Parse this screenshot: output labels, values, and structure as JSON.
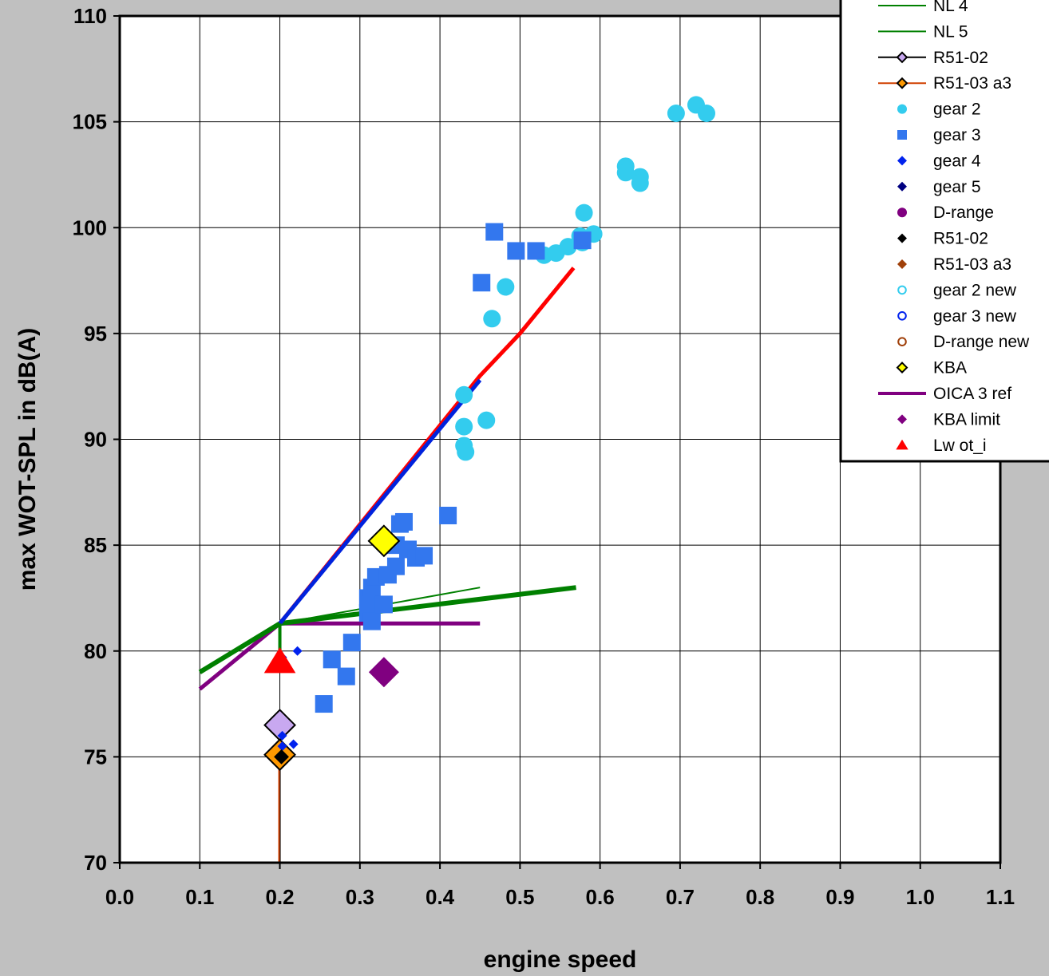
{
  "chart_data": {
    "type": "scatter",
    "title": "",
    "xlabel": "engine speed",
    "ylabel": "max WOT-SPL in dB(A)",
    "xlim": [
      0.0,
      1.1
    ],
    "ylim": [
      70,
      110
    ],
    "xticks": [
      "0.0",
      "0.1",
      "0.2",
      "0.3",
      "0.4",
      "0.5",
      "0.6",
      "0.7",
      "0.8",
      "0.9",
      "1.0",
      "1.1"
    ],
    "yticks": [
      "70",
      "75",
      "80",
      "85",
      "90",
      "95",
      "100",
      "105",
      "110"
    ],
    "grid": true,
    "legend_position": "top-right",
    "series": [
      {
        "name": "NL 4",
        "kind": "line",
        "color": "#008000",
        "width": 6,
        "points": [
          [
            0.1,
            79.0
          ],
          [
            0.2,
            81.3
          ],
          [
            0.57,
            83.0
          ]
        ]
      },
      {
        "name": "NL 5",
        "kind": "line",
        "color": "#008000",
        "width": 2,
        "points": [
          [
            0.2,
            81.3
          ],
          [
            0.45,
            83.0
          ]
        ]
      },
      {
        "name": "R51-02",
        "kind": "line",
        "color": "#000000",
        "width": 2,
        "marker": "diamond",
        "markerFill": "#c8a8f0",
        "points": [
          [
            0.2,
            70.0
          ],
          [
            0.2,
            76.5
          ]
        ],
        "markerPoints": [
          [
            0.2,
            76.5
          ]
        ]
      },
      {
        "name": "R51-03 a3",
        "kind": "line",
        "color": "#d04000",
        "width": 2,
        "marker": "diamond",
        "markerFill": "#ff9900",
        "points": [
          [
            0.199,
            70.0
          ],
          [
            0.199,
            75.1
          ]
        ],
        "markerPoints": [
          [
            0.2,
            75.1
          ]
        ]
      },
      {
        "name": "gear 2",
        "kind": "scatter",
        "marker": "circle",
        "color": "#33ccee",
        "points": [
          [
            0.43,
            92.1
          ],
          [
            0.43,
            90.6
          ],
          [
            0.43,
            89.7
          ],
          [
            0.432,
            89.4
          ],
          [
            0.458,
            90.9
          ],
          [
            0.465,
            95.7
          ],
          [
            0.482,
            97.2
          ],
          [
            0.53,
            98.7
          ],
          [
            0.545,
            98.8
          ],
          [
            0.56,
            99.1
          ],
          [
            0.575,
            99.6
          ],
          [
            0.578,
            99.3
          ],
          [
            0.58,
            100.7
          ],
          [
            0.592,
            99.7
          ],
          [
            0.632,
            102.9
          ],
          [
            0.632,
            102.6
          ],
          [
            0.65,
            102.4
          ],
          [
            0.65,
            102.1
          ],
          [
            0.695,
            105.4
          ],
          [
            0.72,
            105.8
          ],
          [
            0.733,
            105.4
          ]
        ]
      },
      {
        "name": "gear 3",
        "kind": "scatter",
        "marker": "square",
        "color": "#3377ee",
        "points": [
          [
            0.255,
            77.5
          ],
          [
            0.265,
            79.6
          ],
          [
            0.283,
            78.8
          ],
          [
            0.29,
            80.4
          ],
          [
            0.31,
            81.8
          ],
          [
            0.31,
            82.5
          ],
          [
            0.315,
            81.4
          ],
          [
            0.315,
            83.0
          ],
          [
            0.32,
            83.5
          ],
          [
            0.33,
            82.2
          ],
          [
            0.335,
            83.6
          ],
          [
            0.345,
            84.0
          ],
          [
            0.345,
            85.0
          ],
          [
            0.35,
            86.0
          ],
          [
            0.355,
            86.1
          ],
          [
            0.36,
            84.8
          ],
          [
            0.37,
            84.4
          ],
          [
            0.38,
            84.5
          ],
          [
            0.41,
            86.4
          ],
          [
            0.452,
            97.4
          ],
          [
            0.468,
            99.8
          ],
          [
            0.495,
            98.9
          ],
          [
            0.52,
            98.9
          ],
          [
            0.578,
            99.4
          ]
        ]
      },
      {
        "name": "gear 4",
        "kind": "scatter",
        "marker": "diamond",
        "color": "#0022ee",
        "points": [
          [
            0.203,
            79.7
          ],
          [
            0.222,
            80.0
          ],
          [
            0.203,
            76.0
          ],
          [
            0.203,
            75.5
          ],
          [
            0.217,
            75.6
          ]
        ]
      },
      {
        "name": "gear 5",
        "kind": "scatter",
        "marker": "diamond",
        "color": "#000080",
        "points": []
      },
      {
        "name": "D-range",
        "kind": "scatter",
        "marker": "circle",
        "color": "#800080",
        "points": []
      },
      {
        "name": "R51-02",
        "kind": "scatter",
        "marker": "diamond",
        "color": "#000000",
        "stroke": "#000000",
        "points": [
          [
            0.202,
            75.0
          ]
        ]
      },
      {
        "name": "R51-03 a3",
        "kind": "scatter",
        "marker": "diamond",
        "color": "#a0400a",
        "points": []
      },
      {
        "name": "gear 2 new",
        "kind": "scatter",
        "marker": "circle-open",
        "color": "#33ccee",
        "points": []
      },
      {
        "name": "gear 3 new",
        "kind": "scatter",
        "marker": "circle-open",
        "color": "#0022ee",
        "points": []
      },
      {
        "name": "D-range new",
        "kind": "scatter",
        "marker": "circle-open",
        "color": "#a0400a",
        "points": []
      },
      {
        "name": "KBA",
        "kind": "scatter",
        "marker": "diamond",
        "color": "#ffff00",
        "stroke": "#000000",
        "points": [
          [
            0.33,
            85.2
          ]
        ]
      },
      {
        "name": "OICA 3 ref",
        "kind": "line",
        "color": "#800080",
        "width": 5,
        "points": [
          [
            0.1,
            78.2
          ],
          [
            0.2,
            81.3
          ],
          [
            0.45,
            81.3
          ]
        ]
      },
      {
        "name": "KBA limit",
        "kind": "scatter",
        "marker": "diamond",
        "color": "#800080",
        "points": [
          [
            0.33,
            79.0
          ]
        ]
      },
      {
        "name": "Lw ot_i",
        "kind": "scatter",
        "marker": "triangle",
        "color": "#ff0000",
        "points": [
          [
            0.2,
            79.5
          ]
        ]
      }
    ],
    "extra_lines": [
      {
        "color": "#ff0000",
        "width": 5,
        "points": [
          [
            0.2,
            81.3
          ],
          [
            0.45,
            93.0
          ],
          [
            0.5,
            95.0
          ],
          [
            0.567,
            98.1
          ]
        ]
      },
      {
        "color": "#0022dd",
        "width": 5,
        "points": [
          [
            0.2,
            81.3
          ],
          [
            0.45,
            92.8
          ]
        ]
      },
      {
        "color": "#008000",
        "width": 4,
        "points": [
          [
            0.2,
            79.8
          ],
          [
            0.2,
            81.3
          ]
        ]
      }
    ]
  }
}
